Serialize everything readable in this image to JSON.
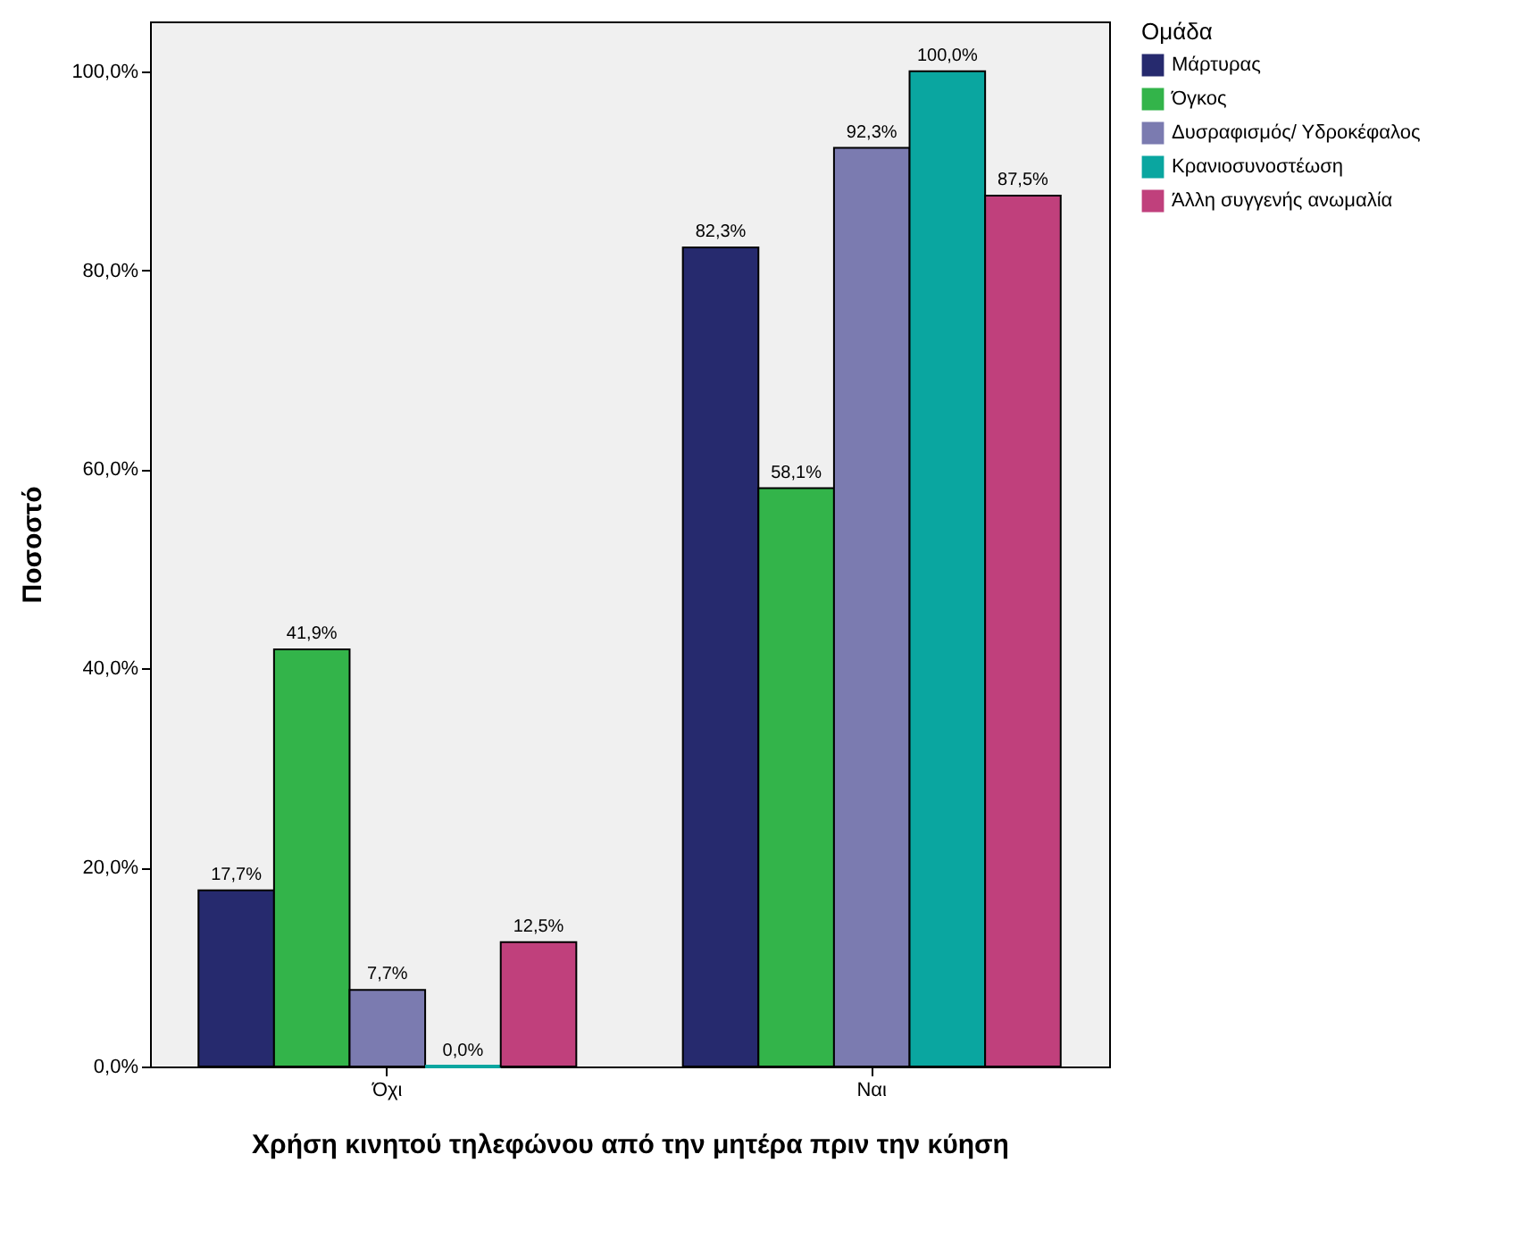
{
  "chart_data": {
    "type": "bar",
    "xlabel": "Χρήση κινητού τηλεφώνου από την μητέρα πριν την κύηση",
    "ylabel": "Ποσοστό",
    "legend_title": "Ομάδα",
    "legend": "top right",
    "categories": [
      "Όχι",
      "Ναι"
    ],
    "ylim": [
      0,
      105
    ],
    "yticks": [
      {
        "value": 0,
        "label": "0,0%"
      },
      {
        "value": 20,
        "label": "20,0%"
      },
      {
        "value": 40,
        "label": "40,0%"
      },
      {
        "value": 60,
        "label": "60,0%"
      },
      {
        "value": 80,
        "label": "80,0%"
      },
      {
        "value": 100,
        "label": "100,0%"
      }
    ],
    "series": [
      {
        "name": "Μάρτυρας",
        "color": "#262a6e",
        "values": [
          17.7,
          82.3
        ],
        "value_labels": [
          "17,7%",
          "82,3%"
        ]
      },
      {
        "name": "Όγκος",
        "color": "#33b44a",
        "values": [
          41.9,
          58.1
        ],
        "value_labels": [
          "41,9%",
          "58,1%"
        ]
      },
      {
        "name": "Δυσραφισμός/ Υδροκέφαλος",
        "color": "#7b7bb0",
        "values": [
          7.7,
          92.3
        ],
        "value_labels": [
          "7,7%",
          "92,3%"
        ]
      },
      {
        "name": "Κρανιοσυνοστέωση",
        "color": "#0aa6a0",
        "values": [
          0.0,
          100.0
        ],
        "value_labels": [
          "0,0%",
          "100,0%"
        ]
      },
      {
        "name": "Άλλη συγγενής ανωμαλία",
        "color": "#c0407c",
        "values": [
          12.5,
          87.5
        ],
        "value_labels": [
          "12,5%",
          "87,5%"
        ]
      }
    ]
  }
}
